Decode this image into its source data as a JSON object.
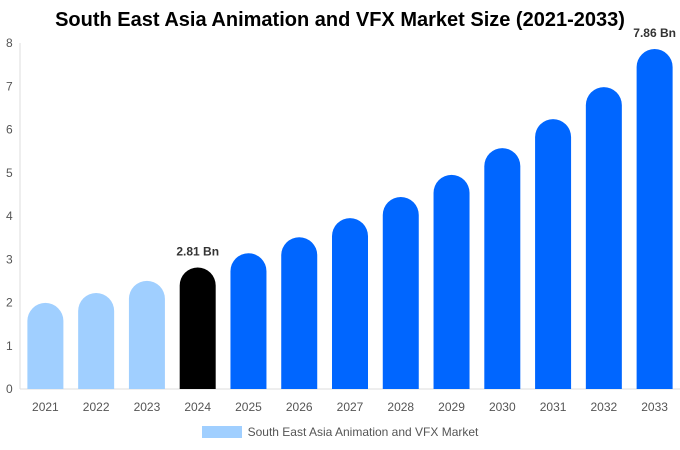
{
  "chart_data": {
    "type": "bar",
    "title": "South East Asia Animation and VFX Market Size (2021-2033)",
    "categories": [
      "2021",
      "2022",
      "2023",
      "2024",
      "2025",
      "2026",
      "2027",
      "2028",
      "2029",
      "2030",
      "2031",
      "2032",
      "2033"
    ],
    "series": [
      {
        "name": "South East Asia Animation and VFX Market",
        "values": [
          1.99,
          2.22,
          2.5,
          2.81,
          3.14,
          3.51,
          3.95,
          4.44,
          4.95,
          5.57,
          6.24,
          6.98,
          7.86
        ]
      }
    ],
    "data_labels": [
      {
        "category": "2024",
        "text": "2.81 Bn"
      },
      {
        "category": "2033",
        "text": "7.86 Bn"
      }
    ],
    "ylim": [
      0,
      8
    ],
    "yticks": [
      "0",
      "1",
      "2",
      "3",
      "4",
      "5",
      "6",
      "7",
      "8"
    ],
    "xlabel": "",
    "ylabel": "",
    "grid": false,
    "legend": "bottom",
    "colors": {
      "historical": "#a0cfff",
      "base_year": "#000000",
      "forecast": "#0066ff",
      "axis": "#dddddd"
    }
  }
}
